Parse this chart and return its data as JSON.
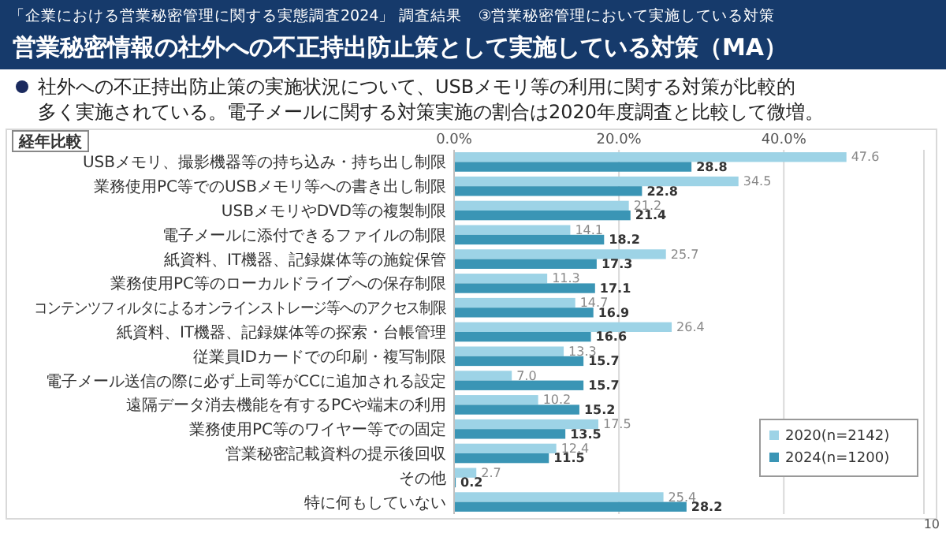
{
  "chart_data": {
    "type": "bar",
    "orientation": "horizontal",
    "subtitle": "「企業における営業秘密管理に関する実態調査2024」 調査結果　③営業秘密管理において実施している対策",
    "title": "営業秘密情報の社外への不正持出防止策として実施している対策（MA）",
    "annotations": [
      "社外への不正持出防止策の実施状況について、USBメモリ等の利用に関する対策が比較的",
      "多く実施されている。電子メールに関する対策実施の割合は2020年度調査と比較して微増。",
      "経年比較",
      "10"
    ],
    "categories": [
      "USBメモリ、撮影機器等の持ち込み・持ち出し制限",
      "業務使用PC等でのUSBメモリ等への書き出し制限",
      "USBメモリやDVD等の複製制限",
      "電子メールに添付できるファイルの制限",
      "紙資料、IT機器、記録媒体等の施錠保管",
      "業務使用PC等のローカルドライブへの保存制限",
      "コンテンツフィルタによるオンラインストレージ等へのアクセス制限",
      "紙資料、IT機器、記録媒体等の探索・台帳管理",
      "従業員IDカードでの印刷・複写制限",
      "電子メール送信の際に必ず上司等がCCに追加される設定",
      "遠隔データ消去機能を有するPCや端末の利用",
      "業務使用PC等のワイヤー等での固定",
      "営業秘密記載資料の提示後回収",
      "その他",
      "特に何もしていない"
    ],
    "series": [
      {
        "name": "2020(n=2142)",
        "color": "#9dd3e6",
        "values": [
          47.6,
          34.5,
          21.2,
          14.1,
          25.7,
          11.3,
          14.7,
          26.4,
          13.3,
          7.0,
          10.2,
          17.5,
          12.4,
          2.7,
          25.4
        ],
        "value_labels": [
          "47.6",
          "34.5",
          "21.2",
          "14.1",
          "25.7",
          "11.3",
          "14.7",
          "26.4",
          "13.3",
          "7.0",
          "10.2",
          "17.5",
          "12.4",
          "2.7",
          "25.4"
        ]
      },
      {
        "name": "2024(n=1200)",
        "color": "#3a95b5",
        "values": [
          28.8,
          22.8,
          21.4,
          18.2,
          17.3,
          17.1,
          16.9,
          16.6,
          15.7,
          15.7,
          15.2,
          13.5,
          11.5,
          0.2,
          28.2
        ],
        "value_labels": [
          "28.8",
          "22.8",
          "21.4",
          "18.2",
          "17.3",
          "17.1",
          "16.9",
          "16.6",
          "15.7",
          "15.7",
          "15.2",
          "13.5",
          "11.5",
          "0.2",
          "28.2"
        ]
      }
    ],
    "xlim": [
      0,
      57
    ],
    "xticks": [
      {
        "value": 0,
        "label": "0.0%"
      },
      {
        "value": 20,
        "label": "20.0%"
      },
      {
        "value": 40,
        "label": "40.0%"
      }
    ],
    "grid": "x",
    "legend": "bottom right"
  }
}
